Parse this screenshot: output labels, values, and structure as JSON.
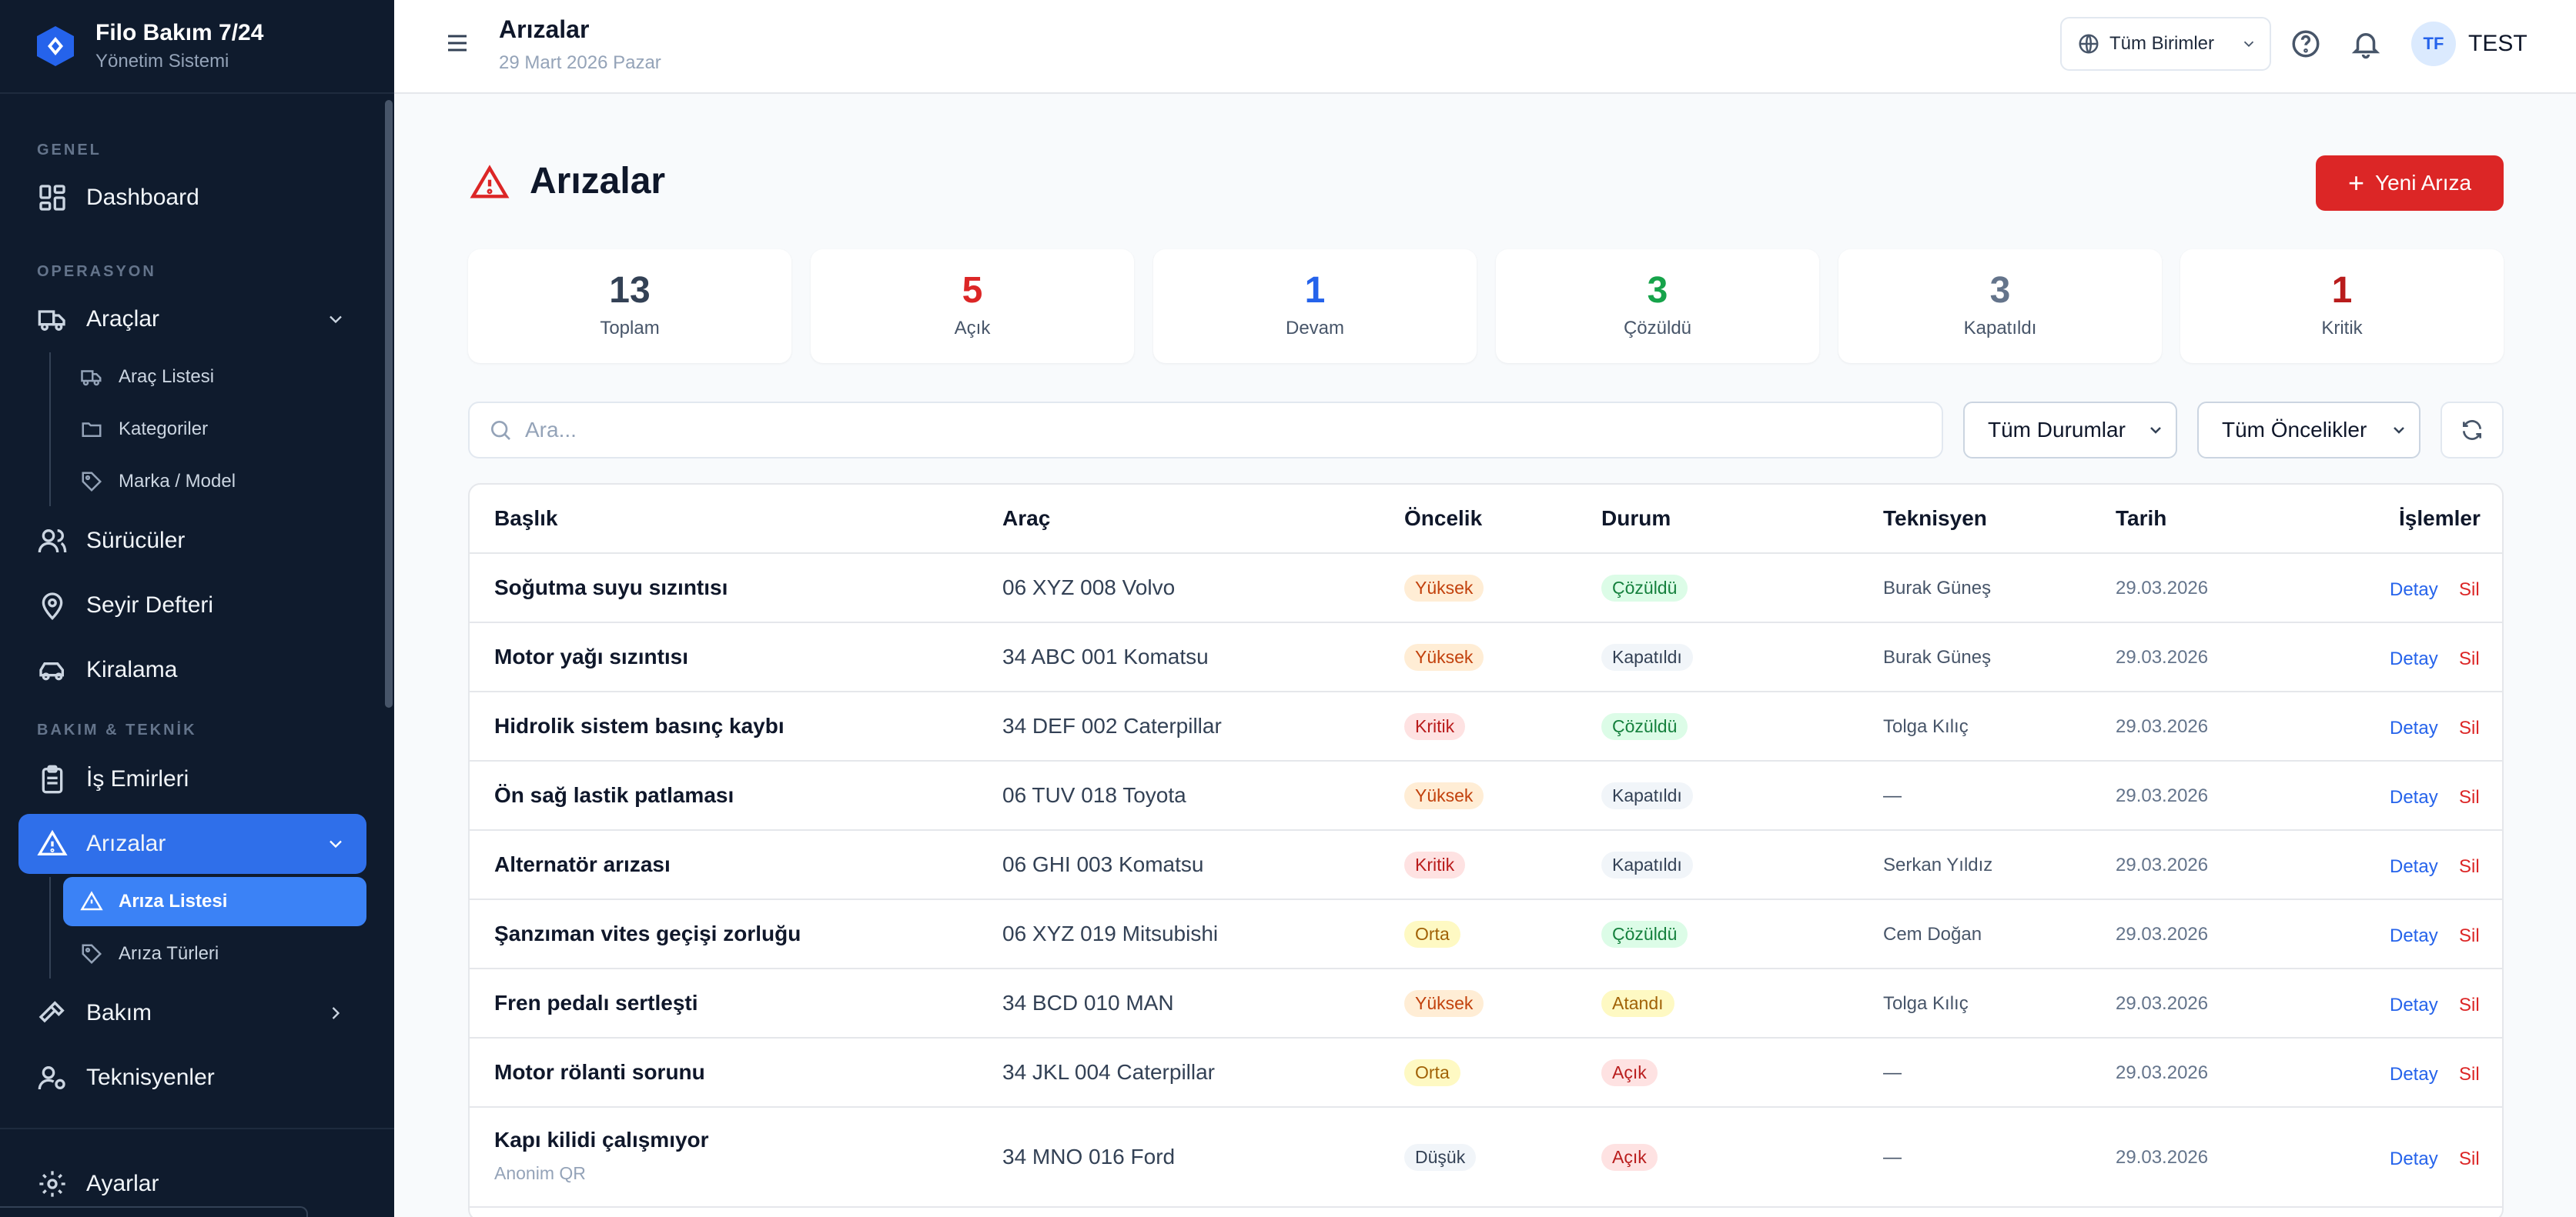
{
  "app": {
    "title": "Filo Bakım 7/24",
    "subtitle": "Yönetim Sistemi"
  },
  "sidebar": {
    "sections": {
      "general": "GENEL",
      "operations": "OPERASYON",
      "maintenance": "BAKIM & TEKNİK"
    },
    "items": {
      "dashboard": "Dashboard",
      "vehicles": "Araçlar",
      "vehicle_list": "Araç Listesi",
      "categories": "Kategoriler",
      "brand_model": "Marka / Model",
      "drivers": "Sürücüler",
      "logbook": "Seyir Defteri",
      "rental": "Kiralama",
      "work_orders": "İş Emirleri",
      "faults": "Arızalar",
      "fault_list": "Arıza Listesi",
      "fault_types": "Arıza Türleri",
      "maintenance": "Bakım",
      "technicians": "Teknisyenler",
      "settings": "Ayarlar"
    }
  },
  "header": {
    "title": "Arızalar",
    "date": "29 Mart 2026 Pazar",
    "unit_select": "Tüm Birimler",
    "avatar_initials": "TF",
    "user_name": "TEST"
  },
  "page": {
    "title": "Arızalar",
    "new_button": "Yeni Arıza",
    "new_button_icon": "+"
  },
  "stats": [
    {
      "value": "13",
      "label": "Toplam",
      "color": "#334155"
    },
    {
      "value": "5",
      "label": "Açık",
      "color": "#dc2626"
    },
    {
      "value": "1",
      "label": "Devam",
      "color": "#2563eb"
    },
    {
      "value": "3",
      "label": "Çözüldü",
      "color": "#16a34a"
    },
    {
      "value": "3",
      "label": "Kapatıldı",
      "color": "#64748b"
    },
    {
      "value": "1",
      "label": "Kritik",
      "color": "#b91c1c"
    }
  ],
  "filters": {
    "search_placeholder": "Ara...",
    "status": "Tüm Durumlar",
    "priority": "Tüm Öncelikler"
  },
  "table": {
    "columns": {
      "title": "Başlık",
      "vehicle": "Araç",
      "priority": "Öncelik",
      "status": "Durum",
      "technician": "Teknisyen",
      "date": "Tarih",
      "actions": "İşlemler"
    },
    "actions": {
      "detail": "Detay",
      "delete": "Sil"
    },
    "rows": [
      {
        "title": "Soğutma suyu sızıntısı",
        "sub": "",
        "vehicle": "06 XYZ 008 Volvo",
        "priority": "Yüksek",
        "status": "Çözüldü",
        "technician": "Burak Güneş",
        "date": "29.03.2026"
      },
      {
        "title": "Motor yağı sızıntısı",
        "sub": "",
        "vehicle": "34 ABC 001 Komatsu",
        "priority": "Yüksek",
        "status": "Kapatıldı",
        "technician": "Burak Güneş",
        "date": "29.03.2026"
      },
      {
        "title": "Hidrolik sistem basınç kaybı",
        "sub": "",
        "vehicle": "34 DEF 002 Caterpillar",
        "priority": "Kritik",
        "status": "Çözüldü",
        "technician": "Tolga Kılıç",
        "date": "29.03.2026"
      },
      {
        "title": "Ön sağ lastik patlaması",
        "sub": "",
        "vehicle": "06 TUV 018 Toyota",
        "priority": "Yüksek",
        "status": "Kapatıldı",
        "technician": "—",
        "date": "29.03.2026"
      },
      {
        "title": "Alternatör arızası",
        "sub": "",
        "vehicle": "06 GHI 003 Komatsu",
        "priority": "Kritik",
        "status": "Kapatıldı",
        "technician": "Serkan Yıldız",
        "date": "29.03.2026"
      },
      {
        "title": "Şanzıman vites geçişi zorluğu",
        "sub": "",
        "vehicle": "06 XYZ 019 Mitsubishi",
        "priority": "Orta",
        "status": "Çözüldü",
        "technician": "Cem Doğan",
        "date": "29.03.2026"
      },
      {
        "title": "Fren pedalı sertleşti",
        "sub": "",
        "vehicle": "34 BCD 010 MAN",
        "priority": "Yüksek",
        "status": "Atandı",
        "technician": "Tolga Kılıç",
        "date": "29.03.2026"
      },
      {
        "title": "Motor rölanti sorunu",
        "sub": "",
        "vehicle": "34 JKL 004 Caterpillar",
        "priority": "Orta",
        "status": "Açık",
        "technician": "—",
        "date": "29.03.2026"
      },
      {
        "title": "Kapı kilidi çalışmıyor",
        "sub": "Anonim QR",
        "vehicle": "34 MNO 016 Ford",
        "priority": "Düşük",
        "status": "Açık",
        "technician": "—",
        "date": "29.03.2026"
      }
    ]
  },
  "badge_colors": {
    "Yüksek": {
      "bg": "#ffedd5",
      "fg": "#c2410c"
    },
    "Kritik": {
      "bg": "#fee2e2",
      "fg": "#b91c1c"
    },
    "Orta": {
      "bg": "#fef9c3",
      "fg": "#a16207"
    },
    "Düşük": {
      "bg": "#f1f5f9",
      "fg": "#334155"
    },
    "Çözüldü": {
      "bg": "#dcfce7",
      "fg": "#15803d"
    },
    "Kapatıldı": {
      "bg": "#f1f5f9",
      "fg": "#334155"
    },
    "Atandı": {
      "bg": "#fef9c3",
      "fg": "#a16207"
    },
    "Açık": {
      "bg": "#fee2e2",
      "fg": "#b91c1c"
    }
  }
}
